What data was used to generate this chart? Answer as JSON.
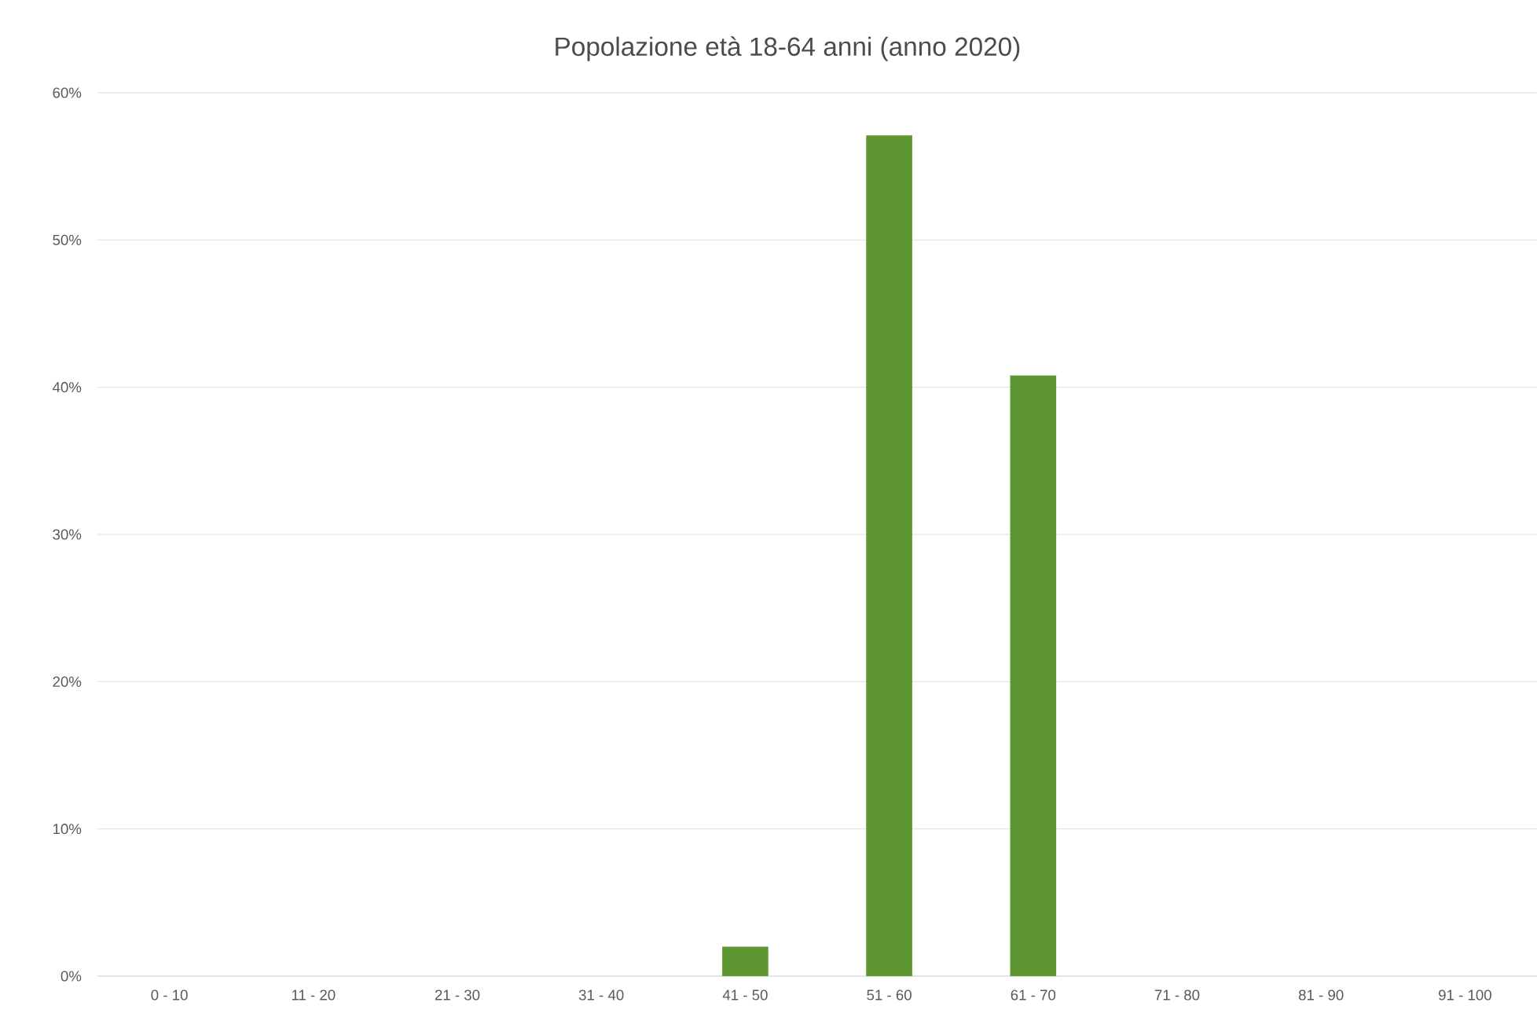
{
  "chart_data": {
    "type": "bar",
    "title": "Popolazione età 18-64 anni (anno 2020)",
    "categories": [
      "0 - 10",
      "11 - 20",
      "21 - 30",
      "31 - 40",
      "41 - 50",
      "51 - 60",
      "61 - 70",
      "71 - 80",
      "81 - 90",
      "91 - 100"
    ],
    "values": [
      0,
      0,
      0,
      0,
      2.0,
      57.1,
      40.8,
      0,
      0,
      0
    ],
    "color": "#5e9732",
    "ylim": [
      0,
      60
    ],
    "yticks": [
      {
        "value": 0,
        "label": "0%"
      },
      {
        "value": 10,
        "label": "10%"
      },
      {
        "value": 20,
        "label": "20%"
      },
      {
        "value": 30,
        "label": "30%"
      },
      {
        "value": 40,
        "label": "40%"
      },
      {
        "value": 50,
        "label": "50%"
      },
      {
        "value": 60,
        "label": "60%"
      }
    ],
    "grid": "y"
  }
}
